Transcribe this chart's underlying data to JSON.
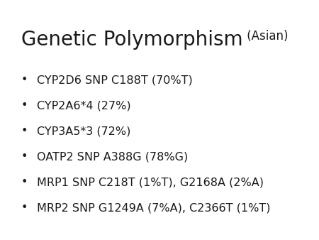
{
  "title_main": "Genetic Polymorphism",
  "title_sub": " (Asian)",
  "title_main_fontsize": 20,
  "title_sub_fontsize": 12,
  "bullet_items": [
    "CYP2D6 SNP C188T (70%T)",
    "CYP2A6*4 (27%)",
    "CYP3A5*3 (72%)",
    "OATP2 SNP A388G (78%G)",
    "MRP1 SNP C218T (1%T), G2168A (2%A)",
    "MRP2 SNP G1249A (7%A), C2366T (1%T)"
  ],
  "bullet_fontsize": 11.5,
  "text_color": "#1a1a1a",
  "background_color": "#ffffff",
  "bullet_char": "•"
}
